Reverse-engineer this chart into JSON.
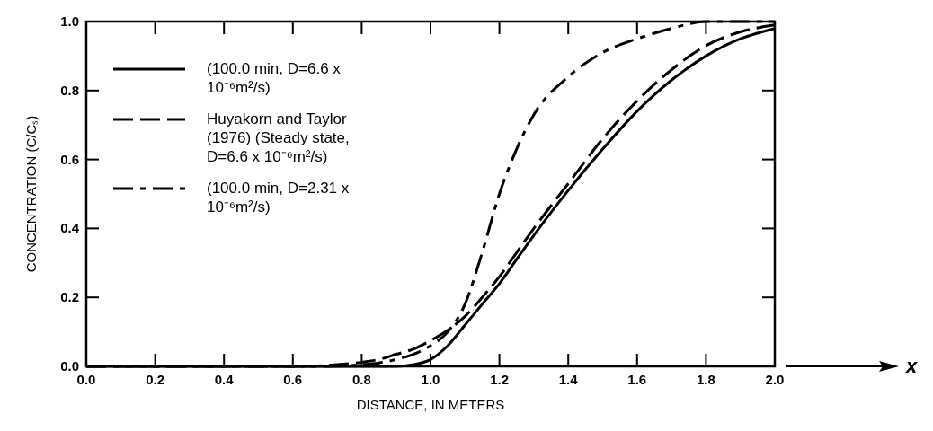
{
  "chart_data": {
    "type": "line",
    "xlabel": "DISTANCE, IN METERS",
    "ylabel": "CONCENTRATION (C/Cₛ)",
    "xlim": [
      0,
      2
    ],
    "ylim": [
      0,
      1
    ],
    "xticks": [
      {
        "value": 0,
        "label": "0.0"
      },
      {
        "value": 0.2,
        "label": "0.2"
      },
      {
        "value": 0.4,
        "label": "0.4"
      },
      {
        "value": 0.6,
        "label": "0.6"
      },
      {
        "value": 0.8,
        "label": "0.8"
      },
      {
        "value": 1,
        "label": "1.0"
      },
      {
        "value": 1.2,
        "label": "1.2"
      },
      {
        "value": 1.4,
        "label": "1.4"
      },
      {
        "value": 1.6,
        "label": "1.6"
      },
      {
        "value": 1.8,
        "label": "1.8"
      },
      {
        "value": 2,
        "label": "2.0"
      }
    ],
    "yticks": [
      {
        "value": 0,
        "label": "0.0"
      },
      {
        "value": 0.2,
        "label": "0.2"
      },
      {
        "value": 0.4,
        "label": "0.4"
      },
      {
        "value": 0.6,
        "label": "0.6"
      },
      {
        "value": 0.8,
        "label": "0.8"
      },
      {
        "value": 1,
        "label": "1.0"
      }
    ],
    "x": [
      0,
      0.2,
      0.4,
      0.6,
      0.7,
      0.8,
      0.85,
      0.9,
      0.95,
      1,
      1.05,
      1.1,
      1.15,
      1.2,
      1.25,
      1.3,
      1.4,
      1.5,
      1.6,
      1.7,
      1.8,
      1.9,
      2
    ],
    "series": [
      {
        "name": "(100.0 min, D=6.6 x 10⁻⁶m²/s)",
        "color": "#000000",
        "line_style": "solid",
        "values": [
          0,
          0,
          0,
          0,
          0,
          0,
          0,
          0,
          0.005,
          0.02,
          0.06,
          0.12,
          0.18,
          0.24,
          0.31,
          0.38,
          0.51,
          0.63,
          0.74,
          0.83,
          0.9,
          0.95,
          0.98
        ]
      },
      {
        "name": "Huyakorn and Taylor (1976) (Steady state, D=6.6 x 10⁻⁶m²/s)",
        "color": "#000000",
        "line_style": "dashed",
        "values": [
          0,
          0,
          0,
          0,
          0.003,
          0.012,
          0.02,
          0.035,
          0.05,
          0.075,
          0.105,
          0.145,
          0.2,
          0.26,
          0.33,
          0.4,
          0.53,
          0.66,
          0.77,
          0.86,
          0.93,
          0.97,
          0.99
        ]
      },
      {
        "name": "(100.0 min, D=2.31 x 10⁻⁶m²/s)",
        "color": "#000000",
        "line_style": "dashdot",
        "values": [
          0,
          0,
          0,
          0,
          0,
          0.005,
          0.01,
          0.02,
          0.035,
          0.06,
          0.1,
          0.18,
          0.33,
          0.5,
          0.63,
          0.73,
          0.84,
          0.91,
          0.95,
          0.98,
          1,
          1,
          1
        ]
      }
    ],
    "legend": "top left",
    "annotations": [
      "x"
    ]
  }
}
